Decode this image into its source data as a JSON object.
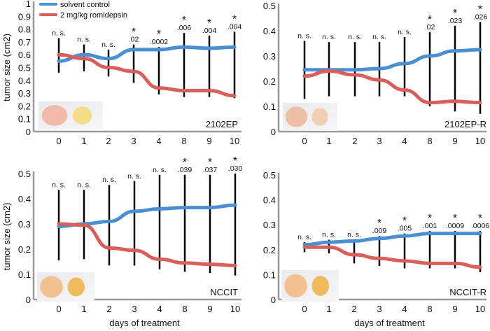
{
  "legend": [
    {
      "label": "solvent control",
      "color": "#4a8fd4"
    },
    {
      "label": "2 mg/kg romidepsin",
      "color": "#d9605a"
    }
  ],
  "y_axis_label": "tumor size (cm2)",
  "x_axis_label": "days of treatment",
  "chart_data": [
    {
      "type": "line",
      "cell_line": "2102EP",
      "categories": [
        "0",
        "1",
        "2",
        "3",
        "4",
        "8",
        "9",
        "10"
      ],
      "ylim": [
        0,
        1
      ],
      "yticks": [
        "0",
        "0.1",
        "0.2",
        "0.3",
        "0.4",
        "0.5",
        "0.6",
        "0.7",
        "0.8",
        "0.9",
        "1"
      ],
      "series": [
        {
          "name": "solvent control",
          "values": [
            0.55,
            0.6,
            0.57,
            0.64,
            0.64,
            0.66,
            0.65,
            0.66
          ]
        },
        {
          "name": "2 mg/kg romidepsin",
          "values": [
            0.6,
            0.57,
            0.5,
            0.47,
            0.34,
            0.32,
            0.32,
            0.28
          ]
        }
      ],
      "error_ranges": [
        [
          0.46,
          0.73
        ],
        [
          0.47,
          0.68
        ],
        [
          0.43,
          0.64
        ],
        [
          0.38,
          0.68
        ],
        [
          0.29,
          0.66
        ],
        [
          0.27,
          0.77
        ],
        [
          0.27,
          0.75
        ],
        [
          0.26,
          0.78
        ]
      ],
      "significance": [
        {
          "star": false,
          "label": "n. s."
        },
        {
          "star": false,
          "label": "n. s."
        },
        {
          "star": false,
          "label": "n. s."
        },
        {
          "star": true,
          "label": ".02"
        },
        {
          "star": true,
          "label": ".0002"
        },
        {
          "star": true,
          "label": ".006"
        },
        {
          "star": true,
          "label": ".004"
        },
        {
          "star": true,
          "label": ".004"
        }
      ]
    },
    {
      "type": "line",
      "cell_line": "2102EP-R",
      "categories": [
        "0",
        "1",
        "2",
        "3",
        "4",
        "8",
        "9",
        "10"
      ],
      "ylim": [
        0,
        0.5
      ],
      "yticks": [
        "0",
        "0.1",
        "0.2",
        "0.3",
        "0.4",
        "0.5"
      ],
      "series": [
        {
          "name": "solvent control",
          "values": [
            0.245,
            0.245,
            0.245,
            0.25,
            0.27,
            0.3,
            0.32,
            0.325
          ]
        },
        {
          "name": "2 mg/kg romidepsin",
          "values": [
            0.22,
            0.24,
            0.225,
            0.205,
            0.165,
            0.115,
            0.12,
            0.115
          ]
        }
      ],
      "error_ranges": [
        [
          0.13,
          0.36
        ],
        [
          0.14,
          0.355
        ],
        [
          0.14,
          0.355
        ],
        [
          0.14,
          0.355
        ],
        [
          0.14,
          0.375
        ],
        [
          0.1,
          0.395
        ],
        [
          0.08,
          0.42
        ],
        [
          0.07,
          0.435
        ]
      ],
      "significance": [
        {
          "star": false,
          "label": "n. s."
        },
        {
          "star": false,
          "label": "n. s."
        },
        {
          "star": false,
          "label": "n. s."
        },
        {
          "star": false,
          "label": "n. s."
        },
        {
          "star": false,
          "label": "n. s."
        },
        {
          "star": true,
          "label": ".02"
        },
        {
          "star": true,
          "label": ".023"
        },
        {
          "star": true,
          "label": ".026"
        }
      ]
    },
    {
      "type": "line",
      "cell_line": "NCCIT",
      "categories": [
        "0",
        "1",
        "2",
        "3",
        "4",
        "8",
        "9",
        "10"
      ],
      "ylim": [
        0,
        0.5
      ],
      "yticks": [
        "0",
        "0.1",
        "0.2",
        "0.3",
        "0.4",
        "0.5"
      ],
      "series": [
        {
          "name": "solvent control",
          "values": [
            0.29,
            0.3,
            0.31,
            0.35,
            0.36,
            0.365,
            0.365,
            0.375
          ]
        },
        {
          "name": "2 mg/kg romidepsin",
          "values": [
            0.3,
            0.295,
            0.205,
            0.195,
            0.16,
            0.145,
            0.14,
            0.135
          ]
        }
      ],
      "error_ranges": [
        [
          0.155,
          0.435
        ],
        [
          0.16,
          0.435
        ],
        [
          0.135,
          0.455
        ],
        [
          0.135,
          0.47
        ],
        [
          0.12,
          0.495
        ],
        [
          0.11,
          0.495
        ],
        [
          0.105,
          0.495
        ],
        [
          0.095,
          0.5
        ]
      ],
      "significance": [
        {
          "star": false,
          "label": "n. s."
        },
        {
          "star": false,
          "label": "n. s."
        },
        {
          "star": false,
          "label": "n. s."
        },
        {
          "star": false,
          "label": "n. s."
        },
        {
          "star": false,
          "label": "n. s."
        },
        {
          "star": true,
          "label": ".039"
        },
        {
          "star": true,
          "label": ".037"
        },
        {
          "star": true,
          "label": ".030"
        }
      ]
    },
    {
      "type": "line",
      "cell_line": "NCCIT-R",
      "categories": [
        "0",
        "1",
        "2",
        "3",
        "4",
        "8",
        "9",
        "10"
      ],
      "ylim": [
        0,
        0.5
      ],
      "yticks": [
        "0",
        "0.1",
        "0.2",
        "0.3",
        "0.4",
        "0.5"
      ],
      "series": [
        {
          "name": "solvent control",
          "values": [
            0.22,
            0.23,
            0.235,
            0.245,
            0.255,
            0.265,
            0.265,
            0.265
          ]
        },
        {
          "name": "2 mg/kg romidepsin",
          "values": [
            0.21,
            0.21,
            0.18,
            0.165,
            0.155,
            0.145,
            0.145,
            0.13
          ]
        }
      ],
      "error_ranges": [
        [
          0.19,
          0.23
        ],
        [
          0.185,
          0.24
        ],
        [
          0.145,
          0.24
        ],
        [
          0.135,
          0.255
        ],
        [
          0.125,
          0.265
        ],
        [
          0.125,
          0.275
        ],
        [
          0.125,
          0.275
        ],
        [
          0.11,
          0.275
        ]
      ],
      "significance": [
        {
          "star": false,
          "label": "n. s."
        },
        {
          "star": false,
          "label": "n. s."
        },
        {
          "star": false,
          "label": "n. s."
        },
        {
          "star": true,
          "label": ".009"
        },
        {
          "star": true,
          "label": ".005"
        },
        {
          "star": true,
          "label": ".001"
        },
        {
          "star": true,
          "label": ".0009"
        },
        {
          "star": true,
          "label": ".0006"
        }
      ]
    }
  ]
}
